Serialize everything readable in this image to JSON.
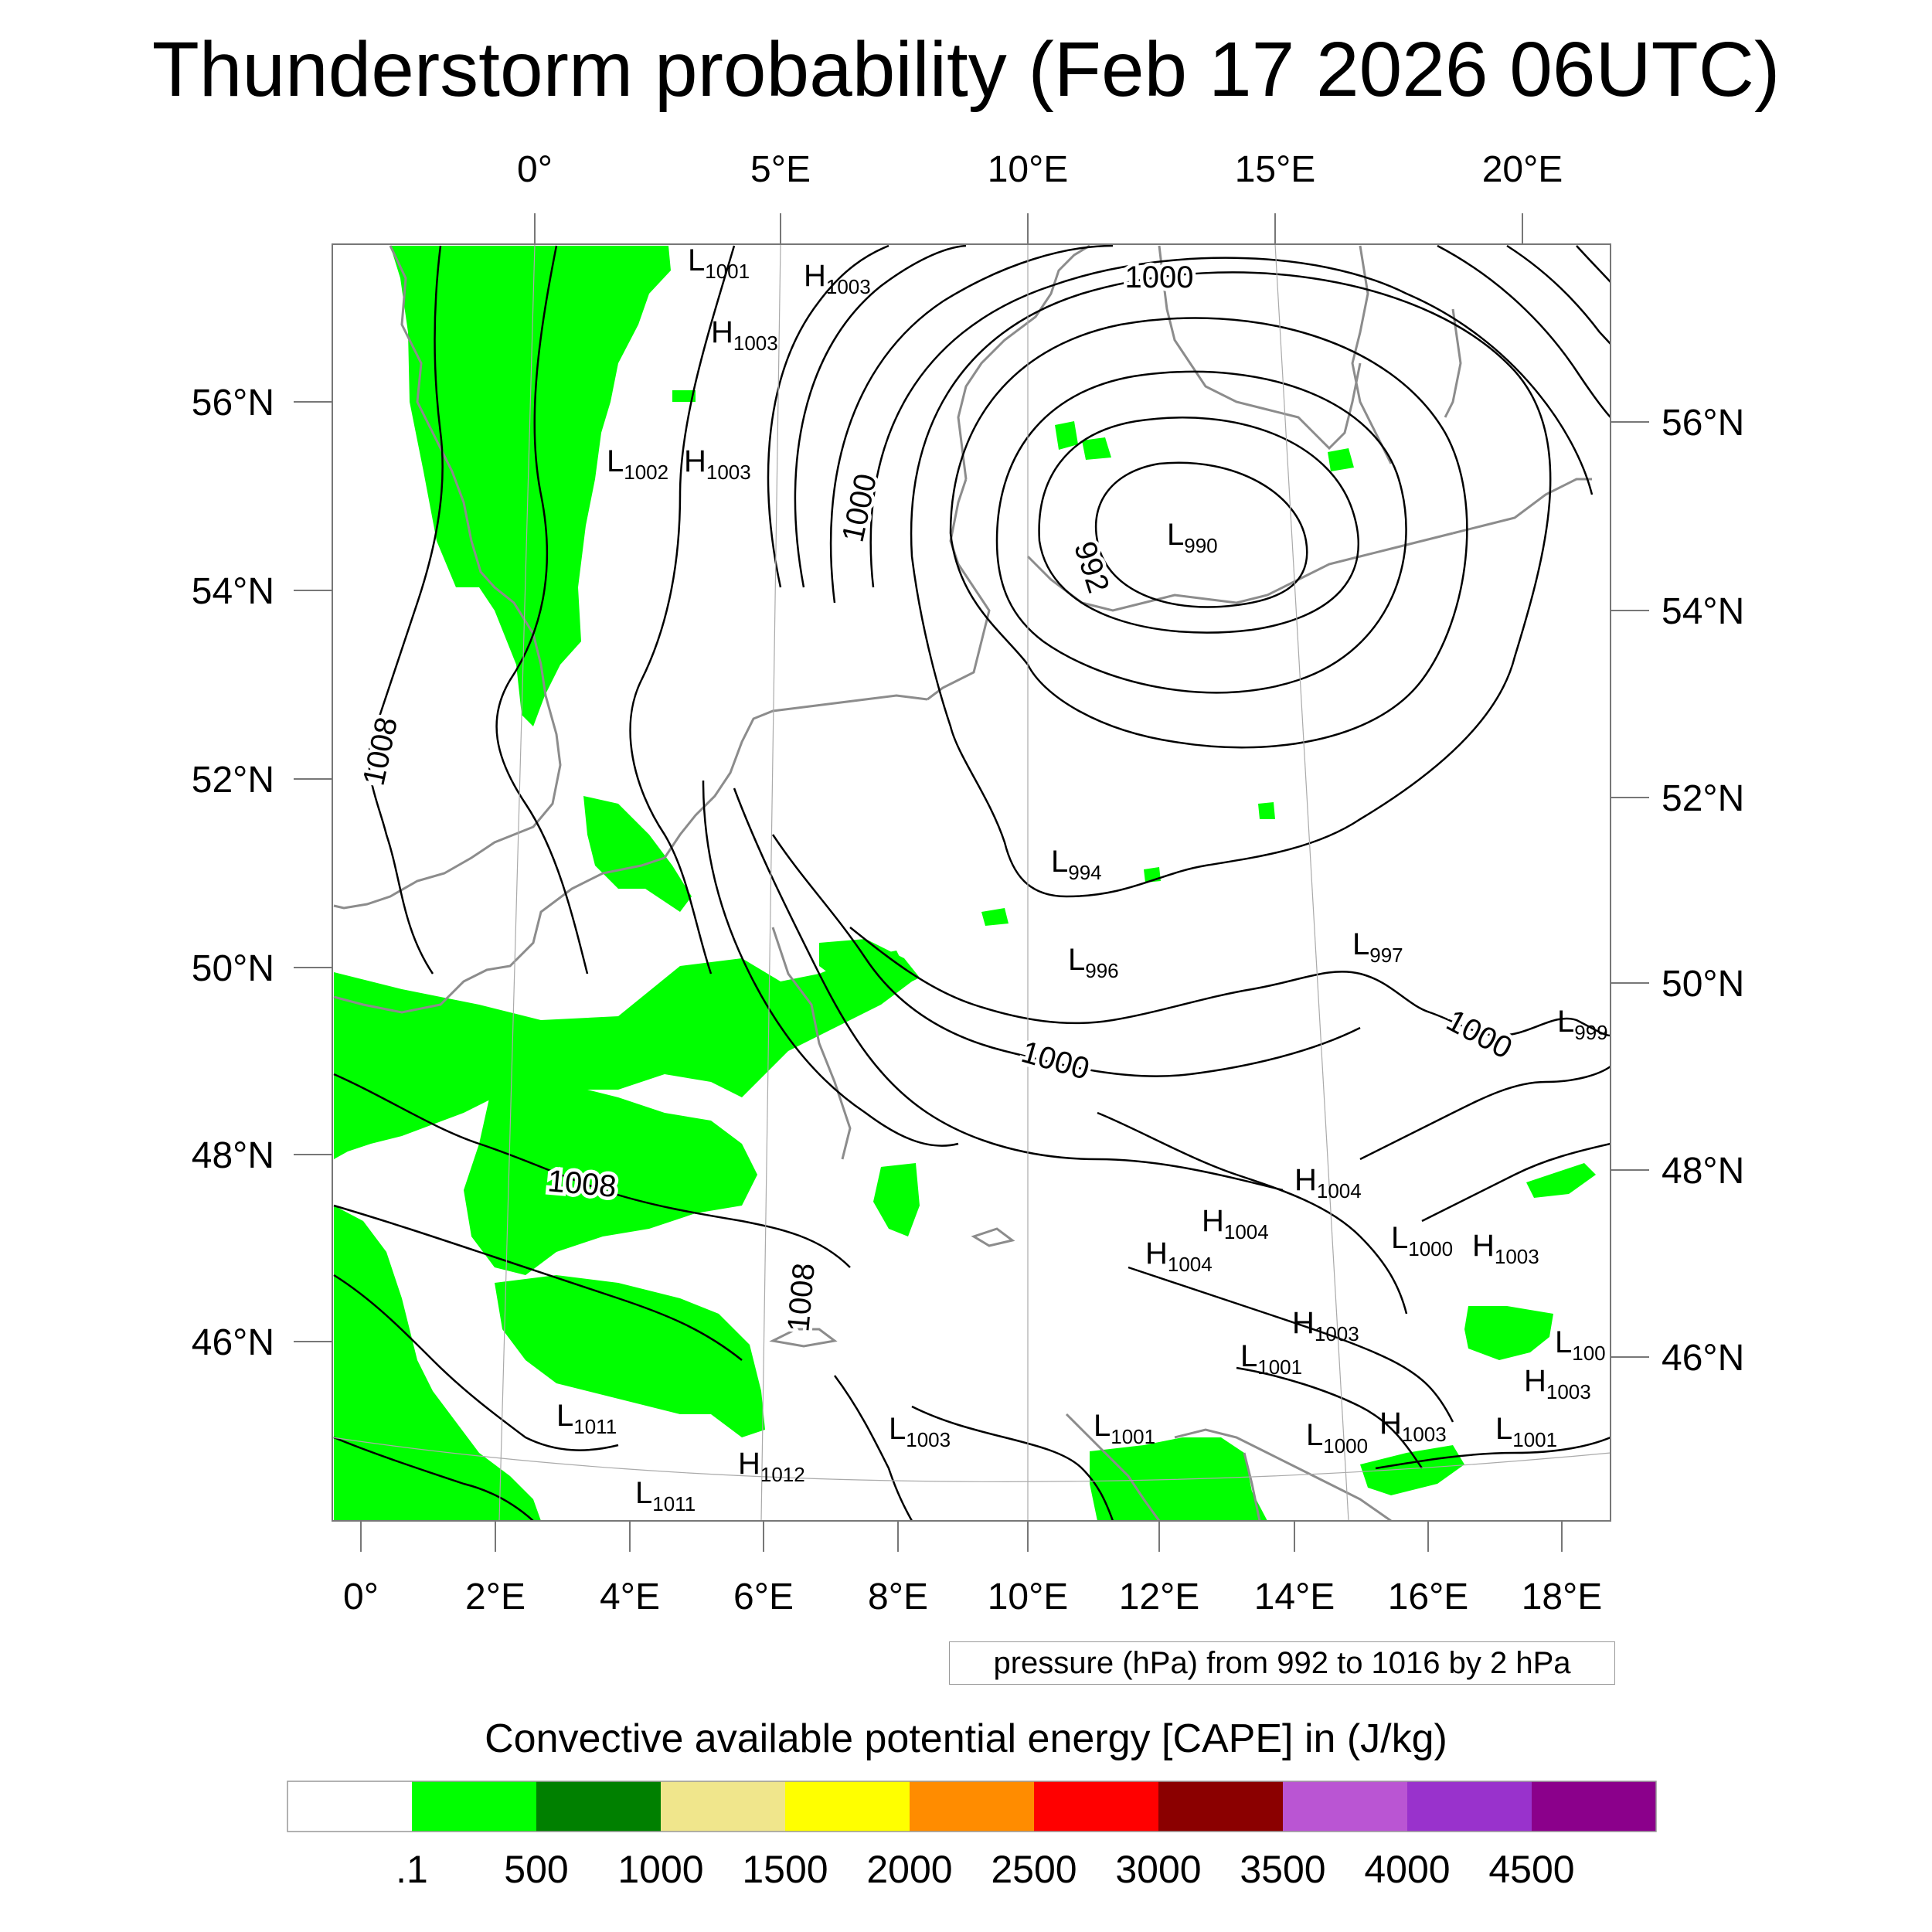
{
  "title": "Thunderstorm probability (Feb 17 2026 06UTC)",
  "axes": {
    "top_lon_labels": [
      "0°",
      "5°E",
      "10°E",
      "15°E",
      "20°E"
    ],
    "bottom_lon_labels": [
      "0°",
      "2°E",
      "4°E",
      "6°E",
      "8°E",
      "10°E",
      "12°E",
      "14°E",
      "16°E",
      "18°E"
    ],
    "left_lat_labels": [
      "56°N",
      "54°N",
      "52°N",
      "50°N",
      "48°N",
      "46°N"
    ],
    "right_lat_labels": [
      "56°N",
      "54°N",
      "52°N",
      "50°N",
      "48°N",
      "46°N"
    ]
  },
  "contour_labels": [
    "1000",
    "1000",
    "992",
    "1008",
    "1000",
    "1000",
    "1008",
    "1008"
  ],
  "pressure_centers": [
    {
      "type": "L",
      "value": "1001"
    },
    {
      "type": "H",
      "value": "1003"
    },
    {
      "type": "H",
      "value": "1003"
    },
    {
      "type": "L",
      "value": "1002"
    },
    {
      "type": "H",
      "value": "1003"
    },
    {
      "type": "L",
      "value": "990"
    },
    {
      "type": "L",
      "value": "994"
    },
    {
      "type": "L",
      "value": "996"
    },
    {
      "type": "L",
      "value": "997"
    },
    {
      "type": "L",
      "value": "999"
    },
    {
      "type": "H",
      "value": "1004"
    },
    {
      "type": "H",
      "value": "1004"
    },
    {
      "type": "H",
      "value": "1004"
    },
    {
      "type": "L",
      "value": "1000"
    },
    {
      "type": "H",
      "value": "1003"
    },
    {
      "type": "H",
      "value": "1003"
    },
    {
      "type": "L",
      "value": "1001"
    },
    {
      "type": "L",
      "value": "1011"
    },
    {
      "type": "H",
      "value": "1012"
    },
    {
      "type": "L",
      "value": "1011"
    },
    {
      "type": "L",
      "value": "1003"
    },
    {
      "type": "L",
      "value": "1001"
    },
    {
      "type": "L",
      "value": "1000"
    },
    {
      "type": "H",
      "value": "1003"
    },
    {
      "type": "L",
      "value": "1001"
    },
    {
      "type": "H",
      "value": "1003"
    },
    {
      "type": "L",
      "value": "100"
    }
  ],
  "contour_note": "pressure (hPa) from 992 to 1016 by 2 hPa",
  "colorbar": {
    "title": "Convective available potential energy [CAPE] in (J/kg)",
    "colors": [
      "#ffffff",
      "#00ff00",
      "#008000",
      "#f0e68c",
      "#ffff00",
      "#ff8c00",
      "#ff0000",
      "#8b0000",
      "#ba55d3",
      "#9932cc",
      "#8b008b"
    ],
    "labels": [
      ".1",
      "500",
      "1000",
      "1500",
      "2000",
      "2500",
      "3000",
      "3500",
      "4000",
      "4500"
    ]
  },
  "style": {
    "cape_green": "#00ff00",
    "coastline": "#8c8c8c",
    "isobar": "#000000"
  }
}
